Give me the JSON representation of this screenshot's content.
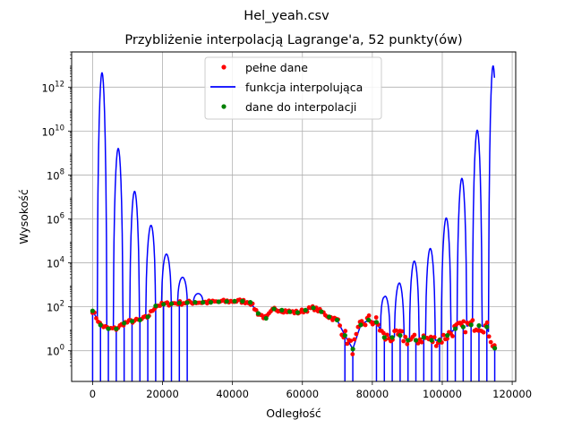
{
  "chart_data": {
    "type": "line",
    "suptitle": "Hel_yeah.csv",
    "title": "Przybliżenie interpolacją Lagrange'a, 52 punkty(ów)",
    "xlabel": "Odległość",
    "ylabel": "Wysokość",
    "xlim": [
      -6000,
      121000
    ],
    "ylim": [
      0.04,
      40000000000000.0
    ],
    "yscale": "log",
    "x_ticks": [
      0,
      20000,
      40000,
      60000,
      80000,
      100000,
      120000
    ],
    "y_ticks": [
      {
        "value": 1,
        "base": "10",
        "exp": "0"
      },
      {
        "value": 100,
        "base": "10",
        "exp": "2"
      },
      {
        "value": 10000,
        "base": "10",
        "exp": "4"
      },
      {
        "value": 1000000,
        "base": "10",
        "exp": "6"
      },
      {
        "value": 100000000,
        "base": "10",
        "exp": "8"
      },
      {
        "value": 10000000000,
        "base": "10",
        "exp": "10"
      },
      {
        "value": 1000000000000,
        "base": "10",
        "exp": "12"
      }
    ],
    "grid": true,
    "legend_position": "upper center",
    "series": [
      {
        "name": "pełne dane",
        "style": "points",
        "color": "#ff0000"
      },
      {
        "name": "funkcja interpolująca",
        "style": "line",
        "color": "#0000ff"
      },
      {
        "name": "dane do interpolacji",
        "style": "points",
        "color": "#008000"
      }
    ],
    "interpolation_points": {
      "x": [
        0,
        2255,
        4510,
        6765,
        9020,
        11275,
        13530,
        15785,
        18040,
        20295,
        22550,
        24805,
        27060,
        29315,
        31570,
        33825,
        36080,
        38335,
        40590,
        42845,
        45100,
        47355,
        49610,
        51865,
        54120,
        56375,
        58630,
        60885,
        63140,
        65395,
        67650,
        69905,
        72160,
        74415,
        76670,
        78925,
        81180,
        83435,
        85690,
        87945,
        90200,
        92455,
        94710,
        96965,
        99220,
        101475,
        103730,
        105985,
        108240,
        110495,
        112750,
        115000
      ],
      "y": [
        65,
        15,
        10,
        10,
        18,
        22,
        25,
        35,
        110,
        130,
        140,
        150,
        155,
        160,
        160,
        160,
        170,
        175,
        180,
        180,
        160,
        50,
        30,
        80,
        70,
        60,
        55,
        70,
        90,
        60,
        35,
        25,
        5,
        1.2,
        15,
        25,
        20,
        4,
        4,
        5,
        3,
        3,
        4,
        3,
        3,
        5,
        10,
        12,
        15,
        14,
        12,
        1.3
      ]
    },
    "lobe_peaks": [
      {
        "x": 2700,
        "y": 4500000000000.0
      },
      {
        "x": 7300,
        "y": 1600000000.0
      },
      {
        "x": 12000,
        "y": 18000000.0
      },
      {
        "x": 16600,
        "y": 500000.0
      },
      {
        "x": 21100,
        "y": 25000
      },
      {
        "x": 25700,
        "y": 2200
      },
      {
        "x": 30200,
        "y": 400
      },
      {
        "x": 83700,
        "y": 300
      },
      {
        "x": 87700,
        "y": 1200
      },
      {
        "x": 92000,
        "y": 12000
      },
      {
        "x": 96600,
        "y": 45000
      },
      {
        "x": 101100,
        "y": 1100000.0
      },
      {
        "x": 105600,
        "y": 70000000.0
      },
      {
        "x": 110000,
        "y": 11000000000.0
      },
      {
        "x": 114600,
        "y": 9000000000000.0
      }
    ]
  }
}
